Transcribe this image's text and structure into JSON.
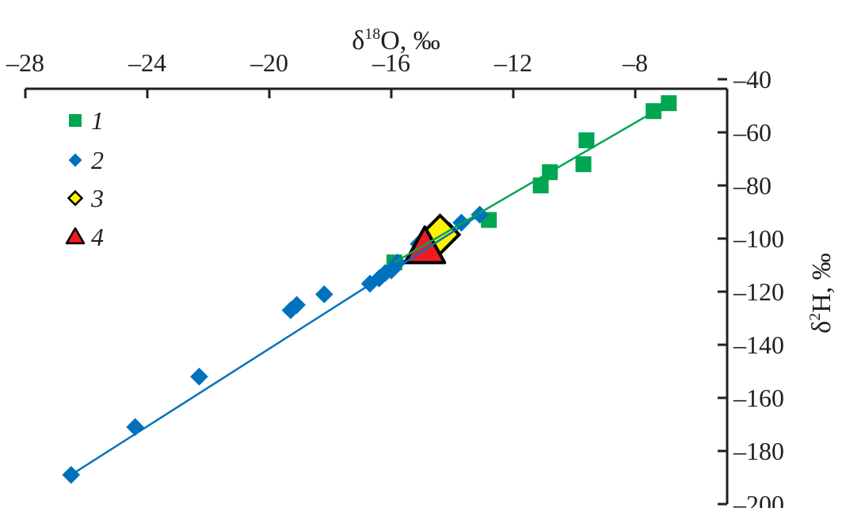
{
  "chart_data": {
    "type": "scatter",
    "xlabel": {
      "main": "δ",
      "sup": "18",
      "rest": "O, ‰"
    },
    "ylabel": {
      "main": "δ",
      "sup": "2",
      "rest": "H, ‰"
    },
    "xlim": [
      -28,
      -5
    ],
    "ylim": [
      -200,
      -40
    ],
    "x_axis_position": "top",
    "y_axis_position": "right",
    "xticks": [
      -28,
      -24,
      -20,
      -16,
      -12,
      -8
    ],
    "yticks": [
      -40,
      -60,
      -80,
      -100,
      -120,
      -140,
      -160,
      -180,
      -200
    ],
    "xtick_labels": [
      "–28",
      "–24",
      "–20",
      "–16",
      "–12",
      "–8"
    ],
    "ytick_labels": [
      "–40",
      "–60",
      "–80",
      "–100",
      "–120",
      "–140",
      "–160",
      "–180",
      "–200"
    ],
    "grid": false,
    "legend_position": "top-left",
    "series": [
      {
        "name": "1",
        "marker": "square",
        "color": "#00a651",
        "points": [
          [
            -6.9,
            -49
          ],
          [
            -7.4,
            -52
          ],
          [
            -9.6,
            -63
          ],
          [
            -9.7,
            -72
          ],
          [
            -10.8,
            -75
          ],
          [
            -11.1,
            -80
          ],
          [
            -12.8,
            -93
          ],
          [
            -15.9,
            -109
          ]
        ],
        "fit_line": [
          [
            -15.9,
            -109
          ],
          [
            -6.9,
            -49
          ]
        ]
      },
      {
        "name": "2",
        "marker": "diamond",
        "color": "#0071bc",
        "points": [
          [
            -26.5,
            -189
          ],
          [
            -24.4,
            -171
          ],
          [
            -22.3,
            -152
          ],
          [
            -19.3,
            -127
          ],
          [
            -19.1,
            -125
          ],
          [
            -18.2,
            -121
          ],
          [
            -16.7,
            -117
          ],
          [
            -16.4,
            -115
          ],
          [
            -16.2,
            -113
          ],
          [
            -16.0,
            -112
          ],
          [
            -15.8,
            -109
          ],
          [
            -15.1,
            -102
          ],
          [
            -14.1,
            -97
          ],
          [
            -13.7,
            -94
          ],
          [
            -13.1,
            -91
          ]
        ],
        "fit_line": [
          [
            -26.5,
            -189
          ],
          [
            -13.1,
            -91
          ]
        ]
      },
      {
        "name": "3",
        "marker": "diamond-large",
        "color": "#fff200",
        "points": [
          [
            -14.4,
            -98.5
          ]
        ]
      },
      {
        "name": "4",
        "marker": "triangle-large",
        "color": "#ed1c24",
        "points": [
          [
            -14.9,
            -104
          ]
        ]
      }
    ]
  }
}
